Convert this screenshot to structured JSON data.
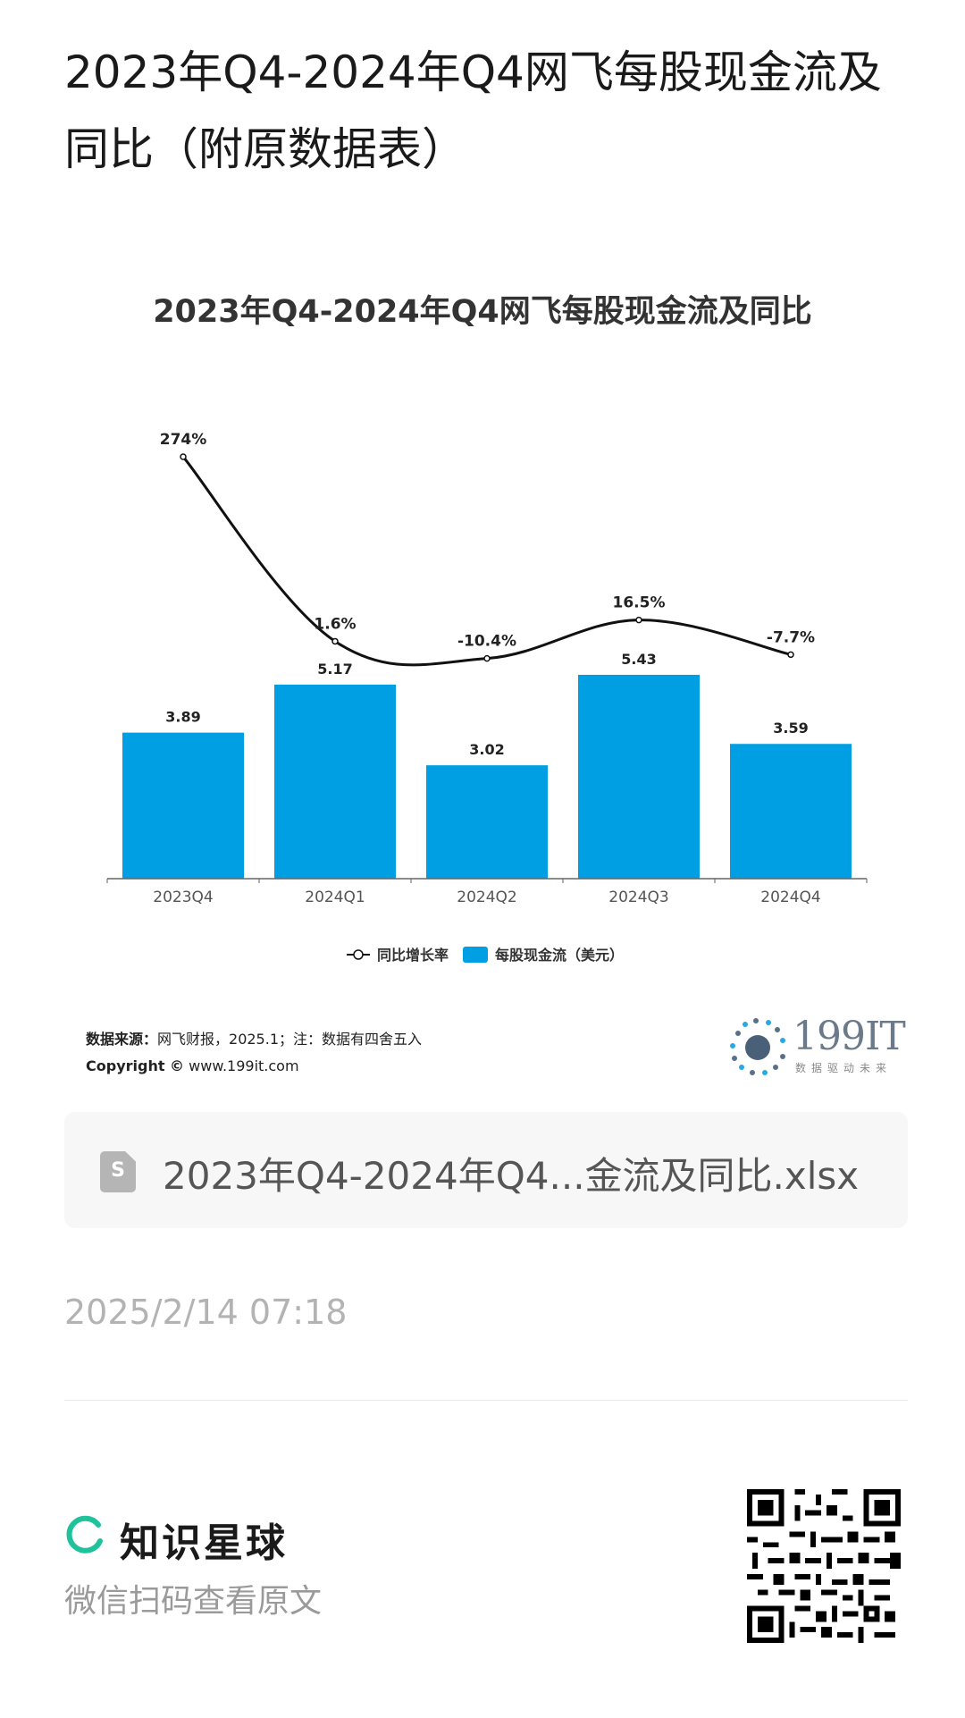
{
  "page": {
    "title": "2023年Q4-2024年Q4网飞每股现金流及同比（附原数据表）"
  },
  "chart_data": {
    "type": "bar",
    "title": "2023年Q4-2024年Q4网飞每股现金流及同比",
    "categories": [
      "2023Q4",
      "2024Q1",
      "2024Q2",
      "2024Q3",
      "2024Q4"
    ],
    "series": [
      {
        "name": "每股现金流（美元）",
        "type": "bar",
        "values": [
          3.89,
          5.17,
          3.02,
          5.43,
          3.59
        ],
        "color": "#009fe3"
      },
      {
        "name": "同比增长率",
        "type": "line",
        "values": [
          274,
          1.6,
          -10.4,
          16.5,
          -7.7
        ],
        "unit": "%",
        "color": "#111111"
      }
    ],
    "line_labels": [
      "274%",
      "1.6%",
      "-10.4%",
      "16.5%",
      "-7.7%"
    ],
    "legend_position": "bottom",
    "grid": false
  },
  "source": {
    "label": "数据来源：",
    "text": "网飞财报，2025.1；注：数据有四舍五入",
    "copyright_label": "Copyright ©",
    "copyright_url": "www.199it.com"
  },
  "logo": {
    "text": "199IT",
    "sub": "数据驱动未来"
  },
  "file": {
    "icon": "spreadsheet-icon",
    "icon_letter": "S",
    "name": "2023年Q4-2024年Q4...金流及同比.xlsx"
  },
  "timestamp": "2025/2/14 07:18",
  "footer": {
    "brand_name": "知识星球",
    "brand_color": "#1fc29a",
    "subtitle": "微信扫码查看原文"
  }
}
